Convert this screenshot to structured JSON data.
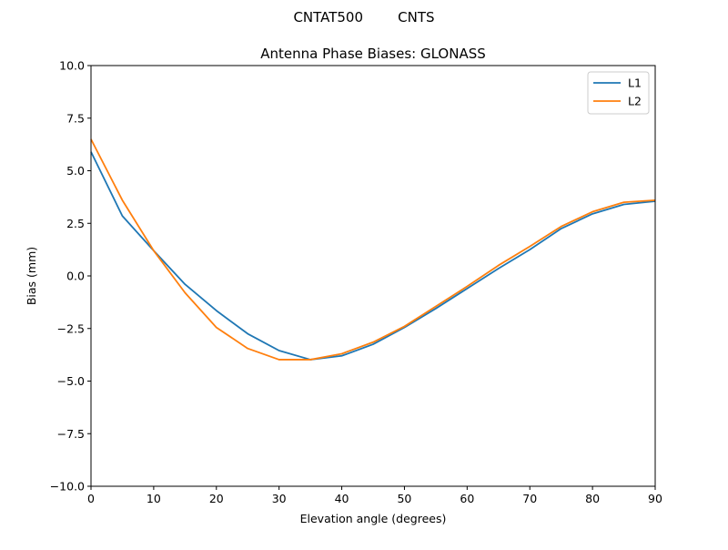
{
  "chart_data": {
    "type": "line",
    "suptitle": "CNTAT500        CNTS",
    "title": "Antenna Phase Biases: GLONASS",
    "xlabel": "Elevation angle (degrees)",
    "ylabel": "Bias (mm)",
    "xlim": [
      0,
      90
    ],
    "ylim": [
      -10,
      10
    ],
    "xticks": [
      0,
      10,
      20,
      30,
      40,
      50,
      60,
      70,
      80,
      90
    ],
    "xtick_labels": [
      "0",
      "10",
      "20",
      "30",
      "40",
      "50",
      "60",
      "70",
      "80",
      "90"
    ],
    "yticks": [
      -10,
      -7.5,
      -5,
      -2.5,
      0,
      2.5,
      5,
      7.5,
      10
    ],
    "ytick_labels": [
      "−10.0",
      "−7.5",
      "−5.0",
      "−2.5",
      "0.0",
      "2.5",
      "5.0",
      "7.5",
      "10.0"
    ],
    "grid": false,
    "legend_position": "top-right",
    "x": [
      0,
      5,
      10,
      15,
      20,
      25,
      30,
      35,
      40,
      45,
      50,
      55,
      60,
      65,
      70,
      75,
      80,
      85,
      90
    ],
    "series": [
      {
        "name": "L1",
        "color": "#1f77b4",
        "values": [
          5.9,
          2.85,
          1.2,
          -0.4,
          -1.65,
          -2.75,
          -3.55,
          -3.98,
          -3.8,
          -3.25,
          -2.45,
          -1.55,
          -0.6,
          0.35,
          1.25,
          2.25,
          2.95,
          3.4,
          3.55
        ]
      },
      {
        "name": "L2",
        "color": "#ff7f0e",
        "values": [
          6.5,
          3.6,
          1.2,
          -0.8,
          -2.45,
          -3.45,
          -3.98,
          -3.98,
          -3.7,
          -3.15,
          -2.4,
          -1.45,
          -0.5,
          0.5,
          1.4,
          2.35,
          3.05,
          3.5,
          3.6
        ]
      }
    ]
  }
}
